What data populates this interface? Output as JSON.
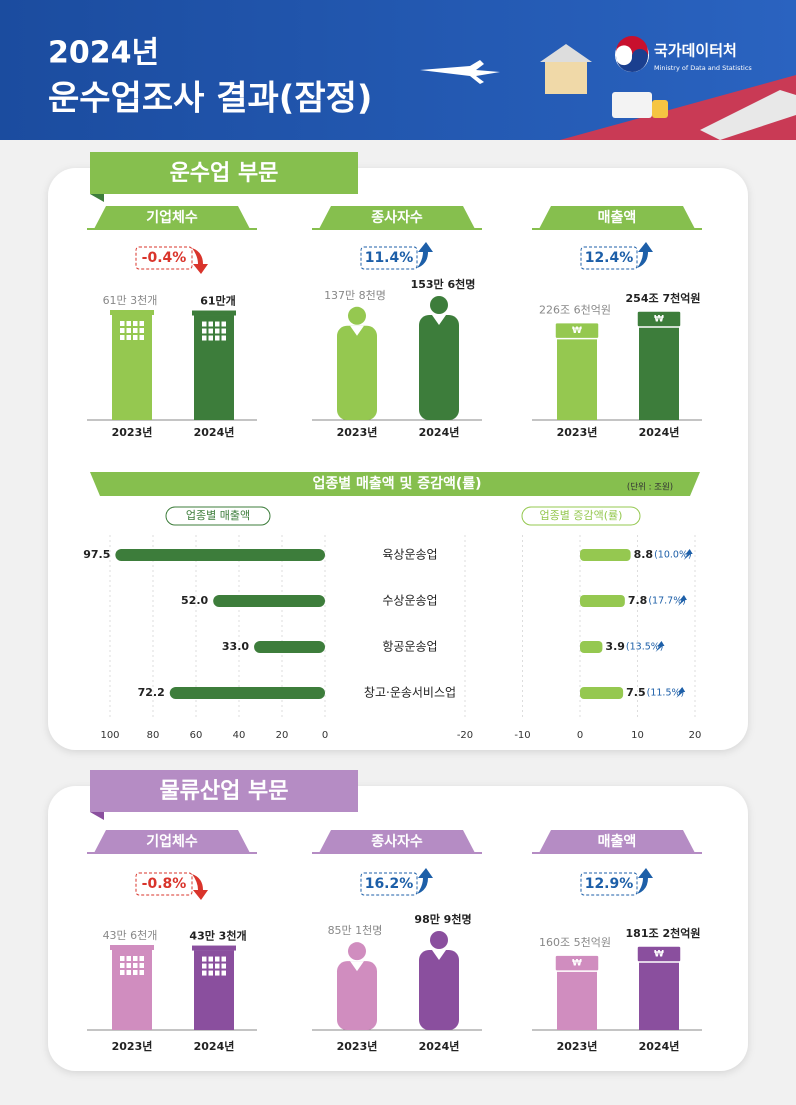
{
  "header": {
    "year_title": "2024년",
    "title": "운수업조사 결과(잠정)",
    "logo": "국가데이터처",
    "logo_sub": "Ministry of Data and Statistics"
  },
  "up_color": "#1d5fa8",
  "down_color": "#d9342b",
  "sections": [
    {
      "title": "운수업 부문",
      "colors": {
        "tab": "#86bf4e",
        "light": "#95c850",
        "dark": "#3d7d3b",
        "soft": "#cfe6b3"
      },
      "panels": [
        {
          "title": "기업체수",
          "icon": "building",
          "change": -0.4,
          "change_label": "-0.4%",
          "categories": [
            "2023년",
            "2024년"
          ],
          "values": [
            613000,
            610000
          ],
          "value_labels": [
            "61만 3천개",
            "61만개"
          ]
        },
        {
          "title": "종사자수",
          "icon": "person",
          "change": 11.4,
          "change_label": "11.4%",
          "categories": [
            "2023년",
            "2024년"
          ],
          "values": [
            1378000,
            1536000
          ],
          "value_labels": [
            "137만 8천명",
            "153만 6천명"
          ]
        },
        {
          "title": "매출액",
          "icon": "money",
          "icon_text": "₩",
          "change": 12.4,
          "change_label": "12.4%",
          "categories": [
            "2023년",
            "2024년"
          ],
          "values": [
            226.6,
            254.7
          ],
          "value_labels": [
            "226조 6천억원",
            "254조 7천억원"
          ]
        }
      ],
      "industry_chart": {
        "type": "bar",
        "title": "업종별 매출액 및 증감액(률)",
        "unit": "(단위 : 조원)",
        "left_legend": "업종별 매출액",
        "right_legend": "업종별 증감액(률)",
        "categories": [
          "육상운송업",
          "수상운송업",
          "항공운송업",
          "창고·운송서비스업"
        ],
        "sales": [
          97.5,
          52.0,
          33.0,
          72.2
        ],
        "sales_labels": [
          "97.5",
          "52.0",
          "33.0",
          "72.2"
        ],
        "changes": [
          8.8,
          7.8,
          3.9,
          7.5
        ],
        "rates": [
          10.0,
          17.7,
          13.5,
          11.5
        ],
        "rate_labels": [
          "(10.0%)",
          "(17.7%)",
          "(13.5%)",
          "(11.5%)"
        ],
        "xlim": [
          100,
          0
        ],
        "xticks": [
          100,
          80,
          60,
          40,
          20,
          0
        ],
        "x2lim": [
          -20,
          20
        ],
        "x2ticks": [
          -20,
          -10,
          0,
          10,
          20
        ],
        "grid": true
      }
    },
    {
      "title": "물류산업 부문",
      "colors": {
        "tab": "#b58cc4",
        "light": "#d08dbf",
        "dark": "#8a4f9e",
        "soft": "#ead3e4"
      },
      "panels": [
        {
          "title": "기업체수",
          "icon": "building",
          "change": -0.8,
          "change_label": "-0.8%",
          "categories": [
            "2023년",
            "2024년"
          ],
          "values": [
            436000,
            433000
          ],
          "value_labels": [
            "43만 6천개",
            "43만 3천개"
          ]
        },
        {
          "title": "종사자수",
          "icon": "person",
          "change": 16.2,
          "change_label": "16.2%",
          "categories": [
            "2023년",
            "2024년"
          ],
          "values": [
            851000,
            989000
          ],
          "value_labels": [
            "85만 1천명",
            "98만 9천명"
          ]
        },
        {
          "title": "매출액",
          "icon": "money",
          "icon_text": "₩",
          "change": 12.9,
          "change_label": "12.9%",
          "categories": [
            "2023년",
            "2024년"
          ],
          "values": [
            160.5,
            181.2
          ],
          "value_labels": [
            "160조 5천억원",
            "181조 2천억원"
          ]
        }
      ]
    }
  ]
}
